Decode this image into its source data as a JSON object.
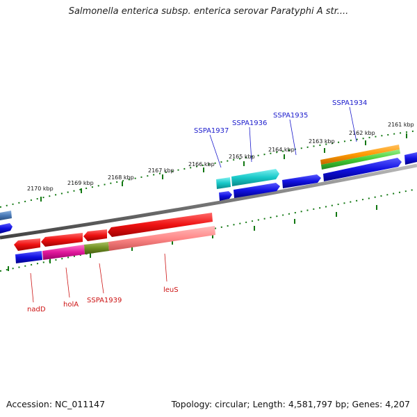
{
  "title": "Salmonella enterica subsp. enterica serovar Paratyphi A str....",
  "footer": {
    "accession": "Accession: NC_011147",
    "summary": "Topology: circular; Length: 4,581,797 bp; Genes: 4,207"
  },
  "ticks": [
    "2170 kbp",
    "2169 kbp",
    "2168 kbp",
    "2167 kbp",
    "2166 kbp",
    "2165 kbp",
    "2164 kbp",
    "2163 kbp",
    "2162 kbp",
    "2161 kbp"
  ],
  "genes_top": [
    "SSPA1937",
    "SSPA1936",
    "SSPA1935",
    "SSPA1934"
  ],
  "genes_bottom": [
    "nadD",
    "holA",
    "SSPA1939",
    "leuS"
  ],
  "colors": {
    "forward_gene": "#1010e0",
    "reverse_gene": "#ee1111",
    "cyan": "#18c8c8",
    "orange": "#ff9900",
    "green": "#44cc33",
    "pink": "#ff8888",
    "magenta": "#e0169a",
    "olive": "#6f8f22",
    "tick_green": "#117711",
    "backbone": "#888888",
    "label_blue": "#1a1acc",
    "label_red": "#cc1111"
  }
}
